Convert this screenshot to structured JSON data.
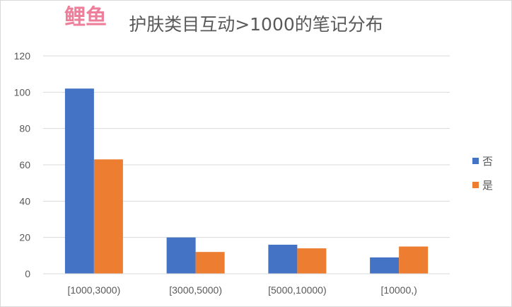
{
  "chart_data": {
    "type": "bar",
    "title": "护肤类目互动>1000的笔记分布",
    "categories": [
      "[1000,3000)",
      "[3000,5000)",
      "[5000,10000)",
      "[10000,)"
    ],
    "series": [
      {
        "name": "否",
        "values": [
          102,
          20,
          16,
          9
        ],
        "color": "#4472c4"
      },
      {
        "name": "是",
        "values": [
          63,
          12,
          14,
          15
        ],
        "color": "#ed7d31"
      }
    ],
    "ylim": [
      0,
      120
    ],
    "yticks": [
      0,
      20,
      40,
      60,
      80,
      100,
      120
    ],
    "grid": true,
    "legend_position": "right"
  },
  "watermark": {
    "text": "鲤鱼",
    "color": "#e8547a"
  }
}
